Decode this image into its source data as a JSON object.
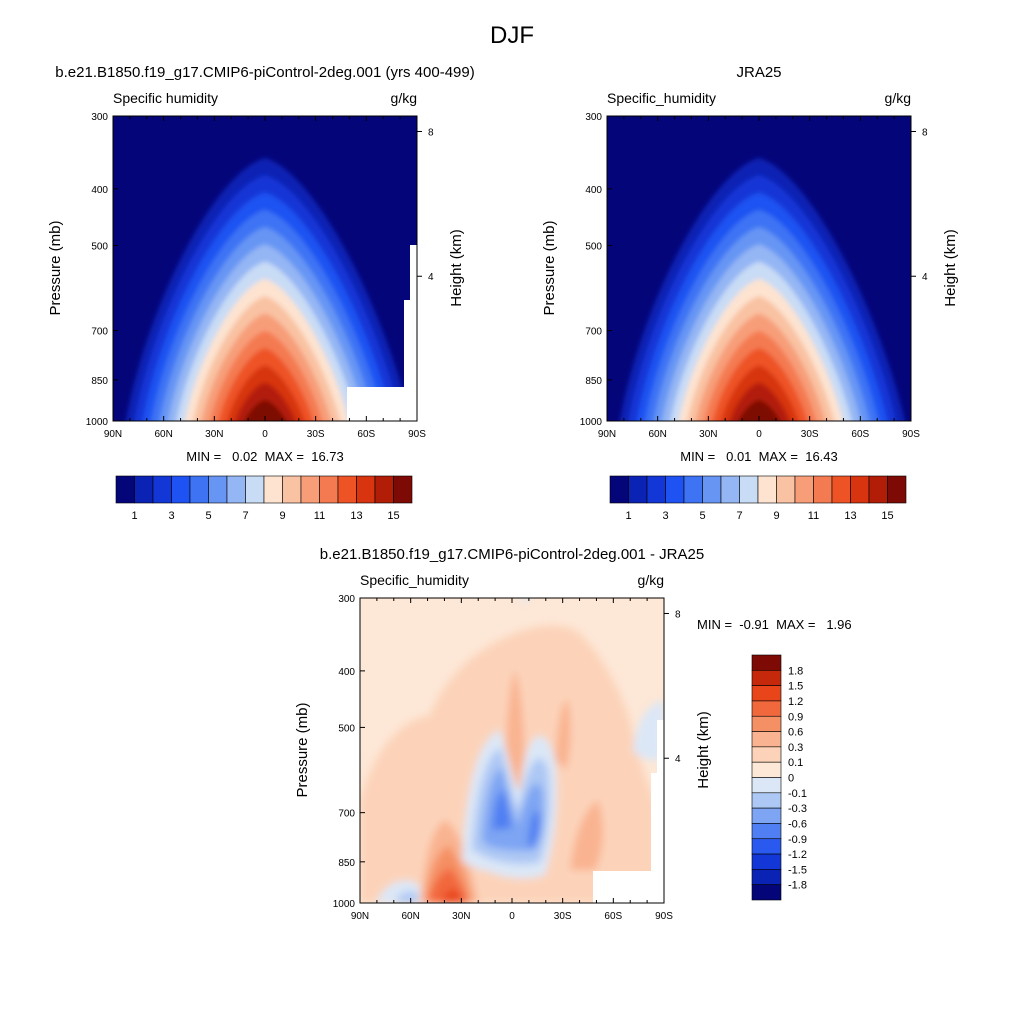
{
  "figure_title": "DJF",
  "panels": [
    {
      "title": "b.e21.B1850.f19_g17.CMIP6-piControl-2deg.001 (yrs 400-499)",
      "left_label": "Specific humidity",
      "units": "g/kg",
      "ylabel": "Pressure (mb)",
      "y2label": "Height (km)",
      "stats": "MIN =   0.02  MAX =  16.73"
    },
    {
      "title": "JRA25",
      "left_label": "Specific_humidity",
      "units": "g/kg",
      "ylabel": "Pressure (mb)",
      "y2label": "Height (km)",
      "stats": "MIN =   0.01  MAX =  16.43"
    },
    {
      "title": "b.e21.B1850.f19_g17.CMIP6-piControl-2deg.001 - JRA25",
      "left_label": "Specific_humidity",
      "units": "g/kg",
      "ylabel": "Pressure (mb)",
      "y2label": "Height (km)",
      "stats": "MIN =  -0.91  MAX =   1.96"
    }
  ],
  "colors": {
    "abs_palette": [
      "#05057a",
      "#0b23b4",
      "#1336d6",
      "#1f52f2",
      "#3e73f4",
      "#6695f4",
      "#94b6f4",
      "#c9dcf5",
      "#fde3d0",
      "#f9c2a3",
      "#f79e79",
      "#f47a51",
      "#ee5325",
      "#d7340f",
      "#b21d08",
      "#7d0a04"
    ],
    "diff_palette": [
      "#05057a",
      "#0b23b4",
      "#1336d6",
      "#2a59f0",
      "#4f7ff2",
      "#7ea5f3",
      "#adc8f4",
      "#dbe7f7",
      "#fde7d6",
      "#fcd3b9",
      "#f9b390",
      "#f58f64",
      "#f2683d",
      "#e8461a",
      "#c5280b",
      "#7d0a04"
    ]
  },
  "chart_data": [
    {
      "type": "heatmap",
      "title": "b.e21.B1850.f19_g17.CMIP6-piControl-2deg.001 (yrs 400-499)",
      "xlabel": "",
      "ylabel": "Pressure (mb)",
      "y2label": "Height (km)",
      "x_ticks": [
        "90N",
        "60N",
        "30N",
        "0",
        "30S",
        "60S",
        "90S"
      ],
      "y_ticks": [
        "300",
        "400",
        "500",
        "700",
        "850",
        "1000"
      ],
      "y2_ticks": [
        "8",
        "4"
      ],
      "xlim": [
        90,
        -90
      ],
      "ylim": [
        1000,
        300
      ],
      "min": 0.02,
      "max": 16.73,
      "colorbar": {
        "levels": [
          1,
          2,
          3,
          4,
          5,
          6,
          7,
          8,
          9,
          10,
          11,
          12,
          13,
          14,
          15
        ],
        "labels": [
          "1",
          "3",
          "5",
          "7",
          "9",
          "11",
          "13",
          "15"
        ]
      }
    },
    {
      "type": "heatmap",
      "title": "JRA25",
      "xlabel": "",
      "ylabel": "Pressure (mb)",
      "y2label": "Height (km)",
      "x_ticks": [
        "90N",
        "60N",
        "30N",
        "0",
        "30S",
        "60S",
        "90S"
      ],
      "y_ticks": [
        "300",
        "400",
        "500",
        "700",
        "850",
        "1000"
      ],
      "y2_ticks": [
        "8",
        "4"
      ],
      "xlim": [
        90,
        -90
      ],
      "ylim": [
        1000,
        300
      ],
      "min": 0.01,
      "max": 16.43,
      "colorbar": {
        "levels": [
          1,
          2,
          3,
          4,
          5,
          6,
          7,
          8,
          9,
          10,
          11,
          12,
          13,
          14,
          15
        ],
        "labels": [
          "1",
          "3",
          "5",
          "7",
          "9",
          "11",
          "13",
          "15"
        ]
      }
    },
    {
      "type": "heatmap",
      "title": "b.e21.B1850.f19_g17.CMIP6-piControl-2deg.001 - JRA25",
      "xlabel": "",
      "ylabel": "Pressure (mb)",
      "y2label": "Height (km)",
      "x_ticks": [
        "90N",
        "60N",
        "30N",
        "0",
        "30S",
        "60S",
        "90S"
      ],
      "y_ticks": [
        "300",
        "400",
        "500",
        "700",
        "850",
        "1000"
      ],
      "y2_ticks": [
        "8",
        "4"
      ],
      "xlim": [
        90,
        -90
      ],
      "ylim": [
        1000,
        300
      ],
      "min": -0.91,
      "max": 1.96,
      "colorbar": {
        "labels": [
          "1.8",
          "1.5",
          "1.2",
          "0.9",
          "0.6",
          "0.3",
          "0.1",
          "0",
          "-0.1",
          "-0.3",
          "-0.6",
          "-0.9",
          "-1.2",
          "-1.5",
          "-1.8"
        ]
      }
    }
  ]
}
